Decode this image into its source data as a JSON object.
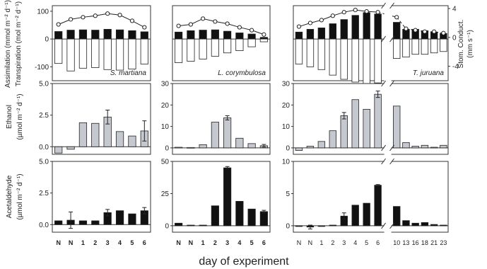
{
  "figure": {
    "xlabel": "day of experiment",
    "right_axis_label": "Stom. Conduct.",
    "right_axis_unit": "(mm s⁻¹)"
  },
  "chart_data": [
    {
      "type": "bar",
      "id": "assim-sm",
      "species": "S. martiana",
      "ylabel": "Assimilation (mmol m⁻² d⁻¹)",
      "ylabel2": "Transpiration (mol m⁻² d⁻¹)",
      "categories": [
        "N",
        "N",
        "1",
        "2",
        "3",
        "4",
        "5",
        "6"
      ],
      "ylim": [
        -150,
        120
      ],
      "yticks": [
        100,
        0,
        -100
      ],
      "series": [
        {
          "style": "black",
          "values": [
            27,
            32,
            33,
            32,
            35,
            33,
            30,
            26
          ]
        },
        {
          "style": "white",
          "values": [
            -88,
            -115,
            -105,
            -103,
            -110,
            -112,
            -108,
            -90
          ]
        },
        {
          "style": "line-circle",
          "axis": "right",
          "values": [
            1.8,
            2.5,
            2.8,
            3.0,
            3.3,
            3.1,
            2.3,
            1.4
          ]
        }
      ]
    },
    {
      "type": "bar",
      "id": "assim-lc",
      "species": "L. corymbulosa",
      "categories": [
        "N",
        "N",
        "1",
        "2",
        "3",
        "4",
        "5",
        "6"
      ],
      "ylim": [
        -150,
        120
      ],
      "series": [
        {
          "style": "black",
          "values": [
            25,
            30,
            32,
            33,
            28,
            22,
            18,
            6
          ]
        },
        {
          "style": "white",
          "values": [
            -85,
            -80,
            -72,
            -62,
            -50,
            -42,
            -28,
            -10
          ]
        },
        {
          "style": "line-circle",
          "axis": "right",
          "values": [
            1.6,
            1.8,
            2.6,
            2.2,
            1.9,
            1.4,
            1.0,
            0.4
          ]
        }
      ]
    },
    {
      "type": "bar",
      "id": "assim-tj",
      "species": "T. juruana",
      "categories": [
        "N",
        "N",
        "1",
        "2",
        "3",
        "4",
        "5",
        "6",
        "10",
        "13",
        "16",
        "18",
        "21",
        "23"
      ],
      "ylim": [
        -150,
        120
      ],
      "right_ylim": [
        -6,
        4.4
      ],
      "right_yticks": [
        4,
        0,
        -4
      ],
      "series": [
        {
          "style": "black",
          "values": [
            25,
            35,
            40,
            55,
            70,
            85,
            95,
            90,
            60,
            35,
            35,
            30,
            25,
            20
          ]
        },
        {
          "style": "white",
          "values": [
            -90,
            -100,
            -110,
            -130,
            -145,
            -155,
            -160,
            -158,
            -70,
            -65,
            -55,
            -55,
            -50,
            -45
          ]
        },
        {
          "style": "line-circle",
          "axis": "right",
          "values": [
            1.5,
            2.0,
            2.4,
            3.0,
            3.5,
            3.8,
            3.6,
            3.5,
            2.8,
            1.2,
            1.0,
            0.8,
            0.8,
            0.6
          ]
        }
      ]
    },
    {
      "type": "bar",
      "id": "eth-sm",
      "ylabel": "Ethanol",
      "ylabel2": "(µmol m⁻² d⁻¹)",
      "categories": [
        "N",
        "N",
        "1",
        "2",
        "3",
        "4",
        "5",
        "6"
      ],
      "ylim": [
        -0.6,
        5.0
      ],
      "yticks": [
        5.0,
        2.5,
        0.0
      ],
      "yticklabels": [
        "5.0",
        "2.5",
        "0.0"
      ],
      "series": [
        {
          "style": "gray",
          "values": [
            -0.5,
            -0.2,
            1.9,
            1.85,
            2.35,
            1.2,
            0.85,
            1.25
          ],
          "errors": [
            0,
            0,
            0,
            0,
            0.55,
            0,
            0,
            0.8
          ]
        }
      ]
    },
    {
      "type": "bar",
      "id": "eth-lc",
      "categories": [
        "N",
        "N",
        "1",
        "2",
        "3",
        "4",
        "5",
        "6"
      ],
      "ylim": [
        -3,
        30
      ],
      "yticks": [
        30,
        20,
        10,
        0
      ],
      "series": [
        {
          "style": "gray",
          "values": [
            0.3,
            0.2,
            1.5,
            12,
            14,
            4.5,
            2,
            1
          ],
          "errors": [
            0,
            0,
            0,
            0,
            1,
            0,
            0,
            0.6
          ]
        }
      ]
    },
    {
      "type": "bar",
      "id": "eth-tj",
      "categories": [
        "N",
        "N",
        "1",
        "2",
        "3",
        "4",
        "5",
        "6",
        "10",
        "13",
        "16",
        "18",
        "21",
        "23"
      ],
      "ylim": [
        -3,
        30
      ],
      "yticks": [
        30,
        20,
        10,
        0
      ],
      "series": [
        {
          "style": "gray",
          "values": [
            -1.2,
            0.8,
            3,
            8,
            15,
            22.5,
            18,
            25,
            19.5,
            2.5,
            0.8,
            1.2,
            0.3,
            1.2
          ],
          "errors": [
            0,
            0,
            0,
            0,
            1.5,
            0,
            0,
            1.5,
            0,
            0,
            0,
            0,
            0,
            0
          ]
        }
      ]
    },
    {
      "type": "bar",
      "id": "ace-sm",
      "ylabel": "Acetaldehyde",
      "ylabel2": "(µmol m⁻² d⁻¹)",
      "categories": [
        "N",
        "N",
        "1",
        "2",
        "3",
        "4",
        "5",
        "6"
      ],
      "ylim": [
        -0.6,
        5.0
      ],
      "yticks": [
        5.0,
        2.5,
        0.0
      ],
      "yticklabels": [
        "5.0",
        "2.5",
        "0.0"
      ],
      "series": [
        {
          "style": "black",
          "values": [
            0.3,
            0.35,
            0.3,
            0.3,
            0.95,
            1.1,
            0.85,
            1.1
          ],
          "errors": [
            0,
            0.65,
            0,
            0,
            0.25,
            0,
            0,
            0.25
          ]
        }
      ]
    },
    {
      "type": "bar",
      "id": "ace-lc",
      "categories": [
        "N",
        "N",
        "1",
        "2",
        "3",
        "4",
        "5",
        "6"
      ],
      "ylim": [
        -5,
        50
      ],
      "yticks": [
        50,
        25,
        0
      ],
      "series": [
        {
          "style": "black",
          "values": [
            2,
            0.5,
            0.5,
            15.5,
            45,
            19,
            13,
            11
          ],
          "errors": [
            0,
            0,
            0,
            0,
            1,
            0,
            0,
            1
          ]
        }
      ]
    },
    {
      "type": "bar",
      "id": "ace-tj",
      "categories": [
        "N",
        "N",
        "1",
        "2",
        "3",
        "4",
        "5",
        "6",
        "10",
        "13",
        "16",
        "18",
        "21",
        "23"
      ],
      "ylim": [
        -1,
        10
      ],
      "yticks": [
        10,
        5,
        0
      ],
      "series": [
        {
          "style": "black",
          "values": [
            0,
            -0.2,
            -0.1,
            0.1,
            1.5,
            3.2,
            3.5,
            6.3,
            3.0,
            0.8,
            0.4,
            0.5,
            0.2,
            0.1
          ],
          "errors": [
            0,
            0.3,
            0,
            0,
            0.5,
            0,
            0,
            0.1,
            0,
            0,
            0,
            0,
            0,
            0
          ]
        }
      ]
    }
  ]
}
